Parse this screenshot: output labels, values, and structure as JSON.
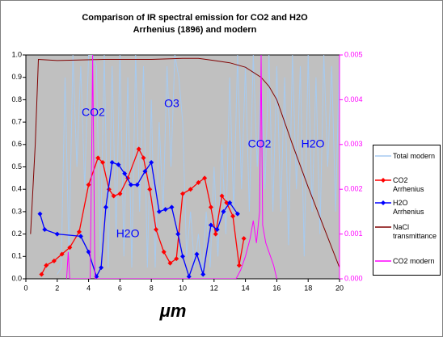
{
  "chart_data": {
    "type": "line",
    "title": "Comparison of IR spectral emission for CO2 and H2O",
    "subtitle": "Arrhenius (1896) and modern",
    "x_label": "μm",
    "xlim": [
      0,
      20
    ],
    "xticks": [
      0,
      2,
      4,
      6,
      8,
      10,
      12,
      14,
      16,
      18,
      20
    ],
    "ylim": [
      0,
      1
    ],
    "yticks": [
      {
        "value": 0,
        "label": "0.0"
      },
      0.1,
      0.2,
      0.3,
      0.4,
      0.5,
      0.6,
      0.7,
      0.8,
      0.9,
      {
        "value": 1,
        "label": "1.0"
      }
    ],
    "y2lim": [
      0,
      0.005
    ],
    "y2ticks": [
      {
        "value": 0,
        "label": "0.000"
      },
      {
        "value": 0.001,
        "label": "0.001"
      },
      {
        "value": 0.002,
        "label": "0.002"
      },
      {
        "value": 0.003,
        "label": "0.003"
      },
      {
        "value": 0.004,
        "label": "0.004"
      },
      {
        "value": 0.005,
        "label": "0.005"
      }
    ],
    "annotations": [
      {
        "text": "CO2",
        "x": 4.3,
        "y": 0.74
      },
      {
        "text": "O3",
        "x": 9.3,
        "y": 0.78
      },
      {
        "text": "CO2",
        "x": 14.9,
        "y": 0.6
      },
      {
        "text": "H2O",
        "x": 18.3,
        "y": 0.6
      },
      {
        "text": "H2O",
        "x": 6.5,
        "y": 0.2
      }
    ],
    "series": [
      {
        "name": "Total modern",
        "color": "#a6caf0",
        "marker": false,
        "x": [
          2.0,
          2.25,
          2.5,
          2.75,
          3.0,
          3.25,
          3.5,
          3.75,
          4.0,
          4.25,
          4.5,
          4.75,
          5.0,
          5.25,
          5.5,
          5.75,
          6.0,
          6.25,
          6.5,
          6.75,
          7.0,
          7.25,
          7.5,
          7.75,
          8.0,
          8.25,
          8.5,
          8.75,
          9.0,
          9.25,
          9.5,
          9.75,
          10.0,
          10.25,
          10.5,
          10.75,
          11.0,
          11.25,
          11.5,
          11.75,
          12.0,
          12.25,
          12.5,
          12.75,
          13.0,
          13.25,
          13.5,
          13.75,
          14.0,
          14.25,
          14.5,
          14.75,
          15.0,
          15.25,
          15.5,
          15.75,
          16.0,
          16.25,
          16.5,
          16.75,
          17.0,
          17.25,
          17.5,
          17.75,
          18.0,
          18.25,
          18.5,
          18.75,
          19.0,
          19.25,
          19.5,
          19.75,
          20.0
        ],
        "values": [
          0.02,
          0.05,
          0.9,
          0.1,
          1.0,
          0.5,
          0.95,
          0.4,
          1.0,
          1.0,
          0.95,
          0.1,
          1.0,
          0.05,
          0.95,
          0.2,
          1.0,
          0.1,
          0.9,
          0.05,
          1.0,
          0.3,
          0.95,
          0.05,
          0.8,
          0.05,
          0.7,
          0.3,
          0.95,
          0.5,
          1.0,
          0.9,
          0.7,
          0.1,
          0.3,
          0.05,
          0.2,
          0.02,
          0.3,
          0.05,
          0.5,
          0.1,
          0.6,
          0.2,
          0.9,
          0.3,
          1.0,
          0.4,
          0.95,
          0.3,
          1.0,
          0.5,
          0.9,
          0.4,
          1.0,
          0.3,
          0.95,
          0.3,
          0.9,
          0.15,
          1.0,
          0.4,
          0.95,
          0.1,
          1.0,
          0.3,
          0.9,
          0.2,
          1.0,
          0.5,
          0.95,
          0.3,
          1.0
        ]
      },
      {
        "name": "CO2 Arrhenius",
        "color": "#ff0000",
        "marker": true,
        "x": [
          1.0,
          1.3,
          1.8,
          2.3,
          2.8,
          3.4,
          4.0,
          4.6,
          4.9,
          5.3,
          5.6,
          6.0,
          6.5,
          7.2,
          7.5,
          7.9,
          8.3,
          8.8,
          9.2,
          9.6,
          10.0,
          10.5,
          11.0,
          11.4,
          11.8,
          12.1,
          12.5,
          12.8,
          13.2,
          13.6,
          13.9
        ],
        "values": [
          0.02,
          0.06,
          0.08,
          0.11,
          0.14,
          0.21,
          0.42,
          0.54,
          0.52,
          0.4,
          0.37,
          0.38,
          0.45,
          0.58,
          0.54,
          0.4,
          0.22,
          0.12,
          0.07,
          0.09,
          0.38,
          0.4,
          0.43,
          0.45,
          0.32,
          0.2,
          0.37,
          0.34,
          0.28,
          0.06,
          0.18
        ]
      },
      {
        "name": "H2O Arrhenius",
        "color": "#0000ff",
        "marker": true,
        "x": [
          0.9,
          1.2,
          2.0,
          3.5,
          4.0,
          4.5,
          4.8,
          5.1,
          5.5,
          5.9,
          6.3,
          6.7,
          7.1,
          7.6,
          8.0,
          8.5,
          8.9,
          9.3,
          9.7,
          10.0,
          10.4,
          10.9,
          11.3,
          11.8,
          12.2,
          12.6,
          13.0,
          13.5
        ],
        "values": [
          0.29,
          0.22,
          0.2,
          0.19,
          0.12,
          0.01,
          0.05,
          0.32,
          0.52,
          0.51,
          0.47,
          0.42,
          0.42,
          0.48,
          0.52,
          0.3,
          0.31,
          0.32,
          0.2,
          0.1,
          0.01,
          0.11,
          0.02,
          0.24,
          0.22,
          0.3,
          0.34,
          0.29
        ]
      },
      {
        "name": "NaCl transmittance",
        "color": "#800000",
        "marker": false,
        "x": [
          0.3,
          0.6,
          0.8,
          2,
          5,
          8,
          10,
          11,
          12,
          13,
          14,
          15,
          15.5,
          16,
          17,
          18,
          19,
          20
        ],
        "values": [
          0.2,
          0.6,
          0.98,
          0.975,
          0.98,
          0.98,
          0.985,
          0.985,
          0.975,
          0.965,
          0.945,
          0.9,
          0.86,
          0.8,
          0.6,
          0.41,
          0.23,
          0.05
        ]
      },
      {
        "name": "CO2 modern",
        "color": "#ff00ff",
        "marker": false,
        "axis": "y2",
        "x": [
          2.6,
          2.7,
          2.8,
          4.1,
          4.2,
          4.26,
          4.32,
          4.4,
          13.4,
          13.7,
          14,
          14.3,
          14.5,
          14.7,
          14.9,
          15.0,
          15.1,
          15.3,
          15.5,
          15.8,
          16
        ],
        "values": [
          0,
          0.0006,
          0,
          0,
          0.003,
          0.005,
          0.003,
          0,
          0,
          0.0002,
          0.0005,
          0.0009,
          0.0013,
          0.0008,
          0.0015,
          0.005,
          0.0012,
          0.0008,
          0.0006,
          0.0003,
          0
        ]
      }
    ]
  }
}
